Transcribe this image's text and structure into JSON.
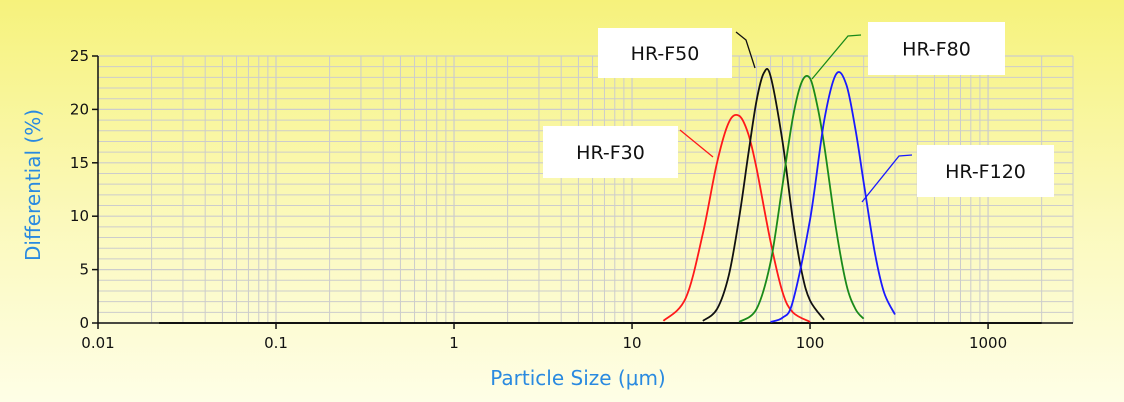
{
  "chart_data": {
    "type": "line",
    "xlabel": "Particle Size (μm)",
    "ylabel": "Differential (%)",
    "xscale": "log",
    "xlim": [
      0.01,
      3000
    ],
    "ylim": [
      0,
      25
    ],
    "x_ticks": [
      {
        "value": 0.01,
        "label": "0.01"
      },
      {
        "value": 0.1,
        "label": "0.1"
      },
      {
        "value": 1,
        "label": "1"
      },
      {
        "value": 10,
        "label": "10"
      },
      {
        "value": 100,
        "label": "100"
      },
      {
        "value": 1000,
        "label": "1000"
      }
    ],
    "y_ticks": [
      {
        "value": 0,
        "label": "0"
      },
      {
        "value": 5,
        "label": "5"
      },
      {
        "value": 10,
        "label": "10"
      },
      {
        "value": 15,
        "label": "15"
      },
      {
        "value": 20,
        "label": "20"
      },
      {
        "value": 25,
        "label": "25"
      }
    ],
    "grid": true,
    "baseline_range": [
      0.022,
      2000
    ],
    "series": [
      {
        "name": "HR-F30",
        "color": "#ff1a1a",
        "x": [
          15,
          20,
          25,
          30,
          35,
          40,
          45,
          50,
          60,
          70,
          80,
          100
        ],
        "y": [
          0.2,
          2.3,
          8.4,
          15.0,
          18.8,
          19.4,
          17.7,
          14.5,
          7.6,
          2.9,
          1.0,
          0.1
        ]
      },
      {
        "name": "HR-F50",
        "color": "#111111",
        "x": [
          25,
          30,
          35,
          40,
          45,
          50,
          55,
          60,
          70,
          80,
          90,
          100,
          120
        ],
        "y": [
          0.2,
          1.3,
          4.5,
          9.9,
          15.8,
          20.8,
          23.4,
          23.1,
          17.0,
          9.7,
          4.7,
          2.1,
          0.3
        ]
      },
      {
        "name": "HR-F80",
        "color": "#1a8a1a",
        "x": [
          40,
          50,
          60,
          70,
          80,
          90,
          100,
          110,
          120,
          140,
          160,
          180,
          200
        ],
        "y": [
          0.1,
          1.3,
          5.7,
          12.9,
          19.2,
          22.6,
          22.9,
          20.3,
          16.7,
          8.8,
          3.6,
          1.3,
          0.4
        ]
      },
      {
        "name": "HR-F120",
        "color": "#1a1aff",
        "x": [
          60,
          70,
          80,
          100,
          120,
          140,
          160,
          180,
          200,
          230,
          260,
          300
        ],
        "y": [
          0.1,
          0.5,
          2.0,
          9.7,
          18.9,
          23.3,
          22.3,
          18.1,
          13.2,
          6.8,
          2.9,
          0.8
        ]
      }
    ],
    "annotations": [
      {
        "text": "HR-F30",
        "target_series": "HR-F30"
      },
      {
        "text": "HR-F50",
        "target_series": "HR-F50"
      },
      {
        "text": "HR-F80",
        "target_series": "HR-F80"
      },
      {
        "text": "HR-F120",
        "target_series": "HR-F120"
      }
    ]
  },
  "colors": {
    "axis_title": "#2a8ae0",
    "grid": "#cccccc",
    "axis": "#111111"
  }
}
